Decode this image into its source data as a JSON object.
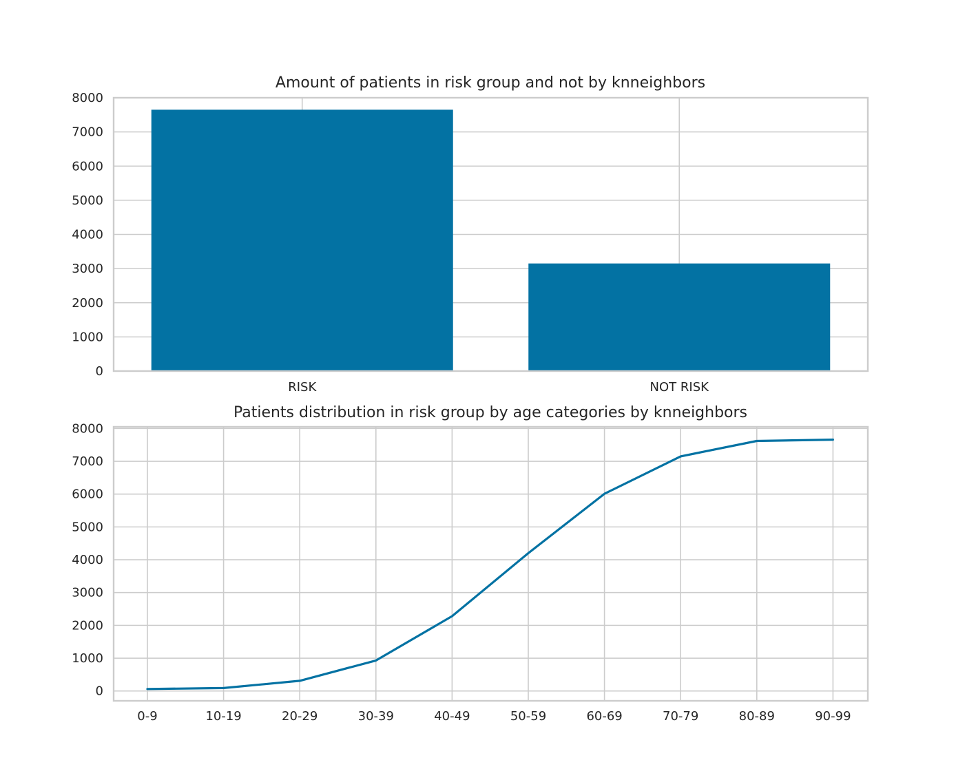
{
  "colors": {
    "series": "#0372a3",
    "grid": "#cccccc",
    "frame": "#cccccc",
    "text": "#262626",
    "background": "#ffffff"
  },
  "chart_data": [
    {
      "type": "bar",
      "title": "Amount of patients in risk group and not by knneighbors",
      "xlabel": "",
      "ylabel": "",
      "categories": [
        "RISK",
        "NOT RISK"
      ],
      "values": [
        7650,
        3150
      ],
      "ylim": [
        0,
        8000
      ],
      "yticks": [
        0,
        1000,
        2000,
        3000,
        4000,
        5000,
        6000,
        7000,
        8000
      ],
      "ytick_labels": [
        "0",
        "1000",
        "2000",
        "3000",
        "4000",
        "5000",
        "6000",
        "7000",
        "8000"
      ],
      "grid": true,
      "legend": "none"
    },
    {
      "type": "line",
      "title": "Patients distribution in risk group by age categories by knneighbors",
      "xlabel": "",
      "ylabel": "",
      "categories": [
        "0-9",
        "10-19",
        "20-29",
        "30-39",
        "40-49",
        "50-59",
        "60-69",
        "70-79",
        "80-89",
        "90-99"
      ],
      "values": [
        60,
        90,
        310,
        930,
        2280,
        4200,
        6010,
        7150,
        7620,
        7660
      ],
      "ylim": [
        -300,
        8050
      ],
      "yticks": [
        0,
        1000,
        2000,
        3000,
        4000,
        5000,
        6000,
        7000,
        8000
      ],
      "ytick_labels": [
        "0",
        "1000",
        "2000",
        "3000",
        "4000",
        "5000",
        "6000",
        "7000",
        "8000"
      ],
      "grid": true,
      "legend": "none"
    }
  ]
}
